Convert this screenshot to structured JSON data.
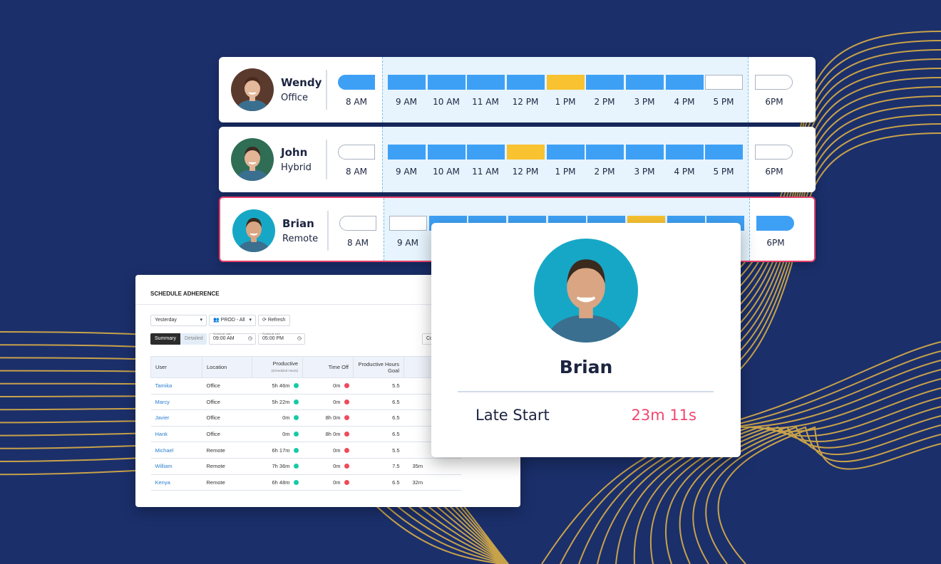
{
  "colors": {
    "background": "#1b2f6b",
    "accent_lines": "#c8a24a",
    "active": "#3ea0f5",
    "break": "#f8c230",
    "highlight_border": "#e8416b",
    "late_value": "#f0476f",
    "on_dot": "#17c9a9",
    "off_dot": "#f04a5a"
  },
  "timeline": {
    "start_label": "8 AM",
    "end_label": "6PM",
    "hours": [
      "9 AM",
      "10 AM",
      "11 AM",
      "12 PM",
      "1 PM",
      "2 PM",
      "3 PM",
      "4 PM",
      "5 PM"
    ],
    "rows": [
      {
        "name": "Wendy",
        "location": "Office",
        "selected": false,
        "start": "active",
        "end": "empty",
        "slots": [
          "active",
          "active",
          "active",
          "active",
          "break",
          "active",
          "active",
          "active",
          "empty"
        ]
      },
      {
        "name": "John",
        "location": "Hybrid",
        "selected": false,
        "start": "empty",
        "end": "empty",
        "slots": [
          "active",
          "active",
          "active",
          "break",
          "active",
          "active",
          "active",
          "active",
          "active"
        ]
      },
      {
        "name": "Brian",
        "location": "Remote",
        "selected": true,
        "start": "empty",
        "end": "active",
        "slots": [
          "empty",
          "active",
          "active",
          "active",
          "active",
          "active",
          "break",
          "active",
          "active"
        ]
      }
    ]
  },
  "popup": {
    "name": "Brian",
    "metric_label": "Late Start",
    "metric_value": "23m 11s"
  },
  "report": {
    "title": "SCHEDULE ADHERENCE",
    "date_select": "Yesterday",
    "team_select": "PROD - All",
    "refresh_label": "Refresh",
    "tabs": [
      "Summary",
      "Detailed"
    ],
    "schedule_start_label": "Schedule start",
    "schedule_start": "09:00 AM",
    "schedule_end_label": "Schedule end",
    "schedule_end": "05:00 PM",
    "partial_button": "Co",
    "columns": [
      {
        "title": "User"
      },
      {
        "title": "Location"
      },
      {
        "title": "Productive",
        "sub": "(Scheduled Hours)"
      },
      {
        "title": "Time Off"
      },
      {
        "title": "Productive Hours Goal"
      },
      {
        "title": "L",
        "sub": "(Sched"
      }
    ],
    "rows": [
      {
        "user": "Tamika",
        "location": "Office",
        "productive": "5h 46m",
        "p_status": "on",
        "time_off": "0m",
        "t_status": "off",
        "goal": "5.5",
        "late": ""
      },
      {
        "user": "Marcy",
        "location": "Office",
        "productive": "5h 22m",
        "p_status": "on",
        "time_off": "0m",
        "t_status": "off",
        "goal": "6.5",
        "late": ""
      },
      {
        "user": "Javier",
        "location": "Office",
        "productive": "0m",
        "p_status": "on",
        "time_off": "8h 0m",
        "t_status": "off",
        "goal": "6.5",
        "late": ""
      },
      {
        "user": "Hank",
        "location": "Office",
        "productive": "0m",
        "p_status": "on",
        "time_off": "8h 0m",
        "t_status": "off",
        "goal": "6.5",
        "late": ""
      },
      {
        "user": "Michael",
        "location": "Remote",
        "productive": "6h 17m",
        "p_status": "on",
        "time_off": "0m",
        "t_status": "off",
        "goal": "5.5",
        "late": ""
      },
      {
        "user": "William",
        "location": "Remote",
        "productive": "7h 36m",
        "p_status": "on",
        "time_off": "0m",
        "t_status": "off",
        "goal": "7.5",
        "late": "35m"
      },
      {
        "user": "Kenya",
        "location": "Remote",
        "productive": "6h 48m",
        "p_status": "on",
        "time_off": "0m",
        "t_status": "off",
        "goal": "6.5",
        "late": "32m"
      }
    ]
  }
}
